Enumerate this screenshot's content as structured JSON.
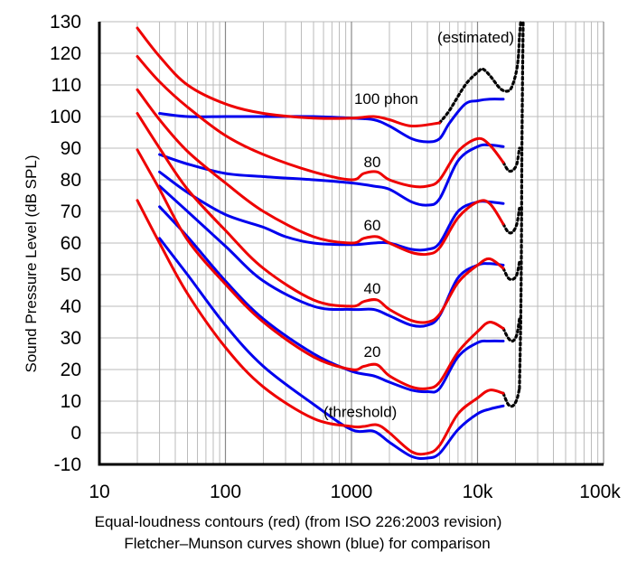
{
  "chart_data": {
    "type": "line",
    "xscale": "log",
    "xlim": [
      10,
      100000
    ],
    "ylim": [
      -10,
      130
    ],
    "yticks": [
      -10,
      0,
      10,
      20,
      30,
      40,
      50,
      60,
      70,
      80,
      90,
      100,
      110,
      120,
      130
    ],
    "xtick_labels": [
      {
        "x": 10,
        "label": "10"
      },
      {
        "x": 100,
        "label": "100"
      },
      {
        "x": 1000,
        "label": "1000"
      },
      {
        "x": 10000,
        "label": "10k"
      },
      {
        "x": 100000,
        "label": "100k"
      }
    ],
    "ylabel": "Sound Pressure Level (dB SPL)",
    "grid": true,
    "colors": {
      "iso": "#ee0000",
      "fletcher": "#0000ee",
      "estimated": "#000000",
      "grid": "#bbbbbb"
    },
    "curve_labels": [
      {
        "text": "(estimated)",
        "x": 4800,
        "y": 123.5
      },
      {
        "text": "100 phon",
        "x": 1050,
        "y": 104
      },
      {
        "text": "80",
        "x": 1250,
        "y": 84
      },
      {
        "text": "60",
        "x": 1250,
        "y": 64
      },
      {
        "text": "40",
        "x": 1250,
        "y": 44
      },
      {
        "text": "20",
        "x": 1250,
        "y": 24
      },
      {
        "text": "(threshold)",
        "x": 600,
        "y": 5
      }
    ],
    "series": [
      {
        "group": "iso",
        "points": [
          [
            20,
            128
          ],
          [
            30,
            119
          ],
          [
            50,
            110
          ],
          [
            100,
            104
          ],
          [
            200,
            101
          ],
          [
            500,
            99.5
          ],
          [
            1000,
            99.5
          ],
          [
            1500,
            100
          ],
          [
            2000,
            99
          ],
          [
            3000,
            97
          ],
          [
            5000,
            98
          ]
        ]
      },
      {
        "group": "iso",
        "points": [
          [
            20,
            119
          ],
          [
            30,
            111
          ],
          [
            50,
            103
          ],
          [
            100,
            94
          ],
          [
            200,
            88
          ],
          [
            500,
            82.5
          ],
          [
            1000,
            80
          ],
          [
            1250,
            82
          ],
          [
            1600,
            82.5
          ],
          [
            2000,
            80
          ],
          [
            3000,
            78
          ],
          [
            4000,
            78
          ],
          [
            5000,
            80
          ],
          [
            7000,
            89
          ],
          [
            10000,
            93
          ],
          [
            12500,
            91
          ],
          [
            16000,
            85.5
          ]
        ]
      },
      {
        "group": "iso",
        "points": [
          [
            20,
            108.5
          ],
          [
            30,
            99
          ],
          [
            50,
            89
          ],
          [
            100,
            79
          ],
          [
            200,
            70
          ],
          [
            500,
            62
          ],
          [
            1000,
            60
          ],
          [
            1250,
            61.5
          ],
          [
            1600,
            62
          ],
          [
            2000,
            60
          ],
          [
            3000,
            57
          ],
          [
            4000,
            56.5
          ],
          [
            5000,
            58.5
          ],
          [
            7000,
            68
          ],
          [
            10000,
            73
          ],
          [
            12500,
            72.5
          ],
          [
            16000,
            66
          ]
        ]
      },
      {
        "group": "iso",
        "points": [
          [
            20,
            101
          ],
          [
            30,
            90
          ],
          [
            50,
            77
          ],
          [
            100,
            64
          ],
          [
            200,
            52
          ],
          [
            500,
            42
          ],
          [
            1000,
            40
          ],
          [
            1250,
            41.5
          ],
          [
            1600,
            42
          ],
          [
            2000,
            39
          ],
          [
            3000,
            35.5
          ],
          [
            4000,
            35
          ],
          [
            5000,
            37.5
          ],
          [
            7000,
            47.5
          ],
          [
            10000,
            53
          ],
          [
            12500,
            55
          ],
          [
            16000,
            52
          ]
        ]
      },
      {
        "group": "iso",
        "points": [
          [
            20,
            89.5
          ],
          [
            30,
            77
          ],
          [
            50,
            61
          ],
          [
            100,
            47
          ],
          [
            200,
            35
          ],
          [
            500,
            24
          ],
          [
            1000,
            20
          ],
          [
            1250,
            21
          ],
          [
            1600,
            21.5
          ],
          [
            2000,
            18
          ],
          [
            3000,
            14.5
          ],
          [
            4000,
            14
          ],
          [
            5000,
            16
          ],
          [
            7000,
            25.5
          ],
          [
            10000,
            32
          ],
          [
            12500,
            35
          ],
          [
            16000,
            33
          ]
        ]
      },
      {
        "group": "iso",
        "points": [
          [
            20,
            73.5
          ],
          [
            30,
            60
          ],
          [
            50,
            44
          ],
          [
            100,
            27
          ],
          [
            200,
            14.5
          ],
          [
            500,
            4.5
          ],
          [
            1000,
            2
          ],
          [
            1250,
            2
          ],
          [
            1600,
            2.5
          ],
          [
            2000,
            0
          ],
          [
            3000,
            -6
          ],
          [
            4000,
            -6.5
          ],
          [
            5000,
            -4
          ],
          [
            7000,
            6
          ],
          [
            10000,
            11
          ],
          [
            12500,
            13.5
          ],
          [
            16000,
            12.5
          ]
        ]
      },
      {
        "group": "fletcher",
        "points": [
          [
            30,
            101
          ],
          [
            50,
            100
          ],
          [
            100,
            100
          ],
          [
            200,
            100
          ],
          [
            500,
            100
          ],
          [
            1000,
            99.5
          ],
          [
            1500,
            99
          ],
          [
            2000,
            97
          ],
          [
            3000,
            93
          ],
          [
            4000,
            92
          ],
          [
            5000,
            93
          ],
          [
            6000,
            98
          ],
          [
            8000,
            104
          ],
          [
            10000,
            105
          ],
          [
            12500,
            105.5
          ],
          [
            16000,
            105.5
          ]
        ]
      },
      {
        "group": "fletcher",
        "points": [
          [
            30,
            88
          ],
          [
            50,
            85
          ],
          [
            100,
            82
          ],
          [
            200,
            81
          ],
          [
            500,
            80
          ],
          [
            1000,
            79
          ],
          [
            1500,
            78
          ],
          [
            2000,
            77
          ],
          [
            3000,
            73
          ],
          [
            4000,
            72
          ],
          [
            5000,
            74
          ],
          [
            7000,
            86
          ],
          [
            10000,
            90.5
          ],
          [
            12500,
            91
          ],
          [
            16000,
            90.5
          ]
        ]
      },
      {
        "group": "fletcher",
        "points": [
          [
            30,
            82.5
          ],
          [
            50,
            76
          ],
          [
            100,
            69
          ],
          [
            200,
            65
          ],
          [
            300,
            62
          ],
          [
            500,
            60
          ],
          [
            1000,
            59.5
          ],
          [
            1500,
            60
          ],
          [
            2000,
            60
          ],
          [
            3000,
            58
          ],
          [
            4000,
            58
          ],
          [
            5000,
            60
          ],
          [
            7000,
            70
          ],
          [
            10000,
            73
          ],
          [
            12500,
            73
          ],
          [
            16000,
            72.5
          ]
        ]
      },
      {
        "group": "fletcher",
        "points": [
          [
            30,
            78
          ],
          [
            50,
            70
          ],
          [
            100,
            59
          ],
          [
            200,
            48
          ],
          [
            500,
            40
          ],
          [
            1000,
            39
          ],
          [
            1500,
            39
          ],
          [
            2000,
            37
          ],
          [
            3000,
            34
          ],
          [
            4000,
            34
          ],
          [
            5000,
            37
          ],
          [
            7000,
            49
          ],
          [
            10000,
            53
          ],
          [
            12500,
            53.5
          ],
          [
            16000,
            53
          ]
        ]
      },
      {
        "group": "fletcher",
        "points": [
          [
            30,
            71.5
          ],
          [
            50,
            62
          ],
          [
            100,
            48
          ],
          [
            200,
            36
          ],
          [
            500,
            25
          ],
          [
            1000,
            19.5
          ],
          [
            1500,
            18
          ],
          [
            2000,
            16
          ],
          [
            3000,
            13.5
          ],
          [
            4000,
            13
          ],
          [
            5000,
            14
          ],
          [
            7000,
            24
          ],
          [
            10000,
            28.5
          ],
          [
            12500,
            29
          ],
          [
            16000,
            29
          ]
        ]
      },
      {
        "group": "fletcher",
        "points": [
          [
            30,
            61.5
          ],
          [
            50,
            50
          ],
          [
            100,
            34
          ],
          [
            200,
            21
          ],
          [
            500,
            9
          ],
          [
            1000,
            1
          ],
          [
            1500,
            0.5
          ],
          [
            2000,
            -3
          ],
          [
            3000,
            -7.5
          ],
          [
            4000,
            -8
          ],
          [
            5000,
            -6.5
          ],
          [
            7000,
            1
          ],
          [
            10000,
            6
          ],
          [
            12500,
            7.5
          ],
          [
            16000,
            8.5
          ]
        ]
      },
      {
        "group": "estimated",
        "points": [
          [
            5000,
            98
          ],
          [
            6000,
            102
          ],
          [
            8000,
            110
          ],
          [
            10000,
            114
          ],
          [
            11000,
            115
          ],
          [
            12500,
            113
          ],
          [
            15000,
            109
          ],
          [
            17000,
            108
          ],
          [
            18500,
            109
          ],
          [
            20000,
            113
          ],
          [
            21000,
            118
          ],
          [
            21500,
            125
          ],
          [
            22000,
            130
          ]
        ]
      },
      {
        "group": "estimated",
        "points": [
          [
            16000,
            85.5
          ],
          [
            17500,
            83
          ],
          [
            19000,
            83
          ],
          [
            20500,
            85
          ],
          [
            21500,
            90
          ]
        ]
      },
      {
        "group": "estimated",
        "points": [
          [
            16000,
            66
          ],
          [
            17500,
            63.5
          ],
          [
            19000,
            63.5
          ],
          [
            20500,
            66
          ],
          [
            21500,
            71
          ]
        ]
      },
      {
        "group": "estimated",
        "points": [
          [
            16000,
            52
          ],
          [
            17500,
            49
          ],
          [
            19000,
            48.5
          ],
          [
            20500,
            50
          ],
          [
            21500,
            54
          ]
        ]
      },
      {
        "group": "estimated",
        "points": [
          [
            16000,
            33
          ],
          [
            17500,
            30
          ],
          [
            19000,
            29
          ],
          [
            20500,
            31
          ],
          [
            21500,
            36
          ]
        ]
      },
      {
        "group": "estimated",
        "points": [
          [
            16000,
            12.5
          ],
          [
            17500,
            9
          ],
          [
            19000,
            8.5
          ],
          [
            20500,
            10.5
          ],
          [
            21500,
            14
          ]
        ]
      },
      {
        "group": "estimated",
        "points": [
          [
            21500,
            14
          ],
          [
            22000,
            35
          ],
          [
            22300,
            60
          ],
          [
            22500,
            90
          ],
          [
            22800,
            115
          ],
          [
            23000,
            130
          ]
        ]
      }
    ]
  },
  "caption": {
    "line1": "Equal-loudness contours (red) (from ISO 226:2003 revision)",
    "line2": "Fletcher–Munson curves shown (blue) for comparison"
  }
}
